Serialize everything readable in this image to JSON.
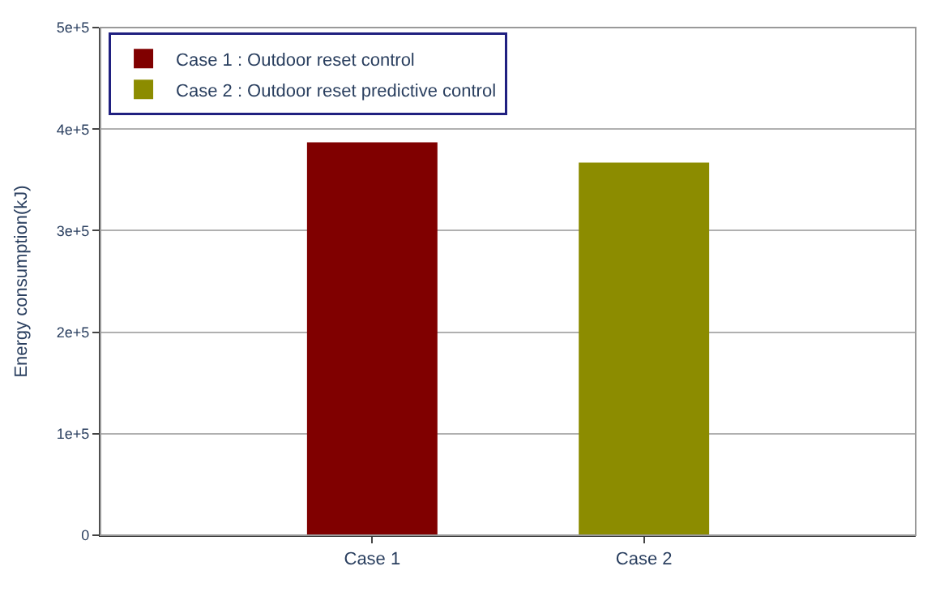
{
  "chart_data": {
    "type": "bar",
    "ylabel": "Energy consumption(kJ)",
    "categories": [
      "Case 1",
      "Case 2"
    ],
    "series": [
      {
        "name": "Case 1 : Outdoor reset control",
        "color": "#800000",
        "values": [
          387000,
          null
        ]
      },
      {
        "name": "Case 2 : Outdoor reset predictive control",
        "color": "#8c8c00",
        "values": [
          null,
          367000
        ]
      }
    ],
    "ylim": [
      0,
      500000
    ],
    "yticks": [
      {
        "value": 0,
        "label": "0"
      },
      {
        "value": 100000,
        "label": "1e+5"
      },
      {
        "value": 200000,
        "label": "2e+5"
      },
      {
        "value": 300000,
        "label": "3e+5"
      },
      {
        "value": 400000,
        "label": "4e+5"
      },
      {
        "value": 500000,
        "label": "5e+5"
      }
    ],
    "grid": "y",
    "legend": "top left"
  }
}
